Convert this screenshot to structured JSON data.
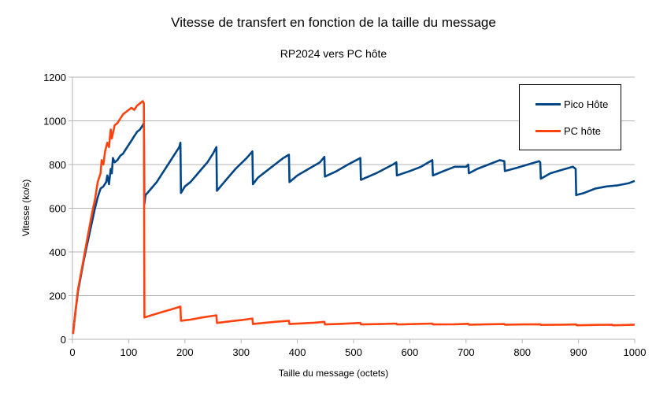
{
  "chart_data": {
    "type": "line",
    "title": "Vitesse de transfert en fonction de la taille du message",
    "subtitle": "RP2024 vers PC hôte",
    "xlabel": "Taille du message (octets)",
    "ylabel": "Vitesse (ko/s)",
    "xlim": [
      0,
      1000
    ],
    "ylim": [
      0,
      1200
    ],
    "xticks": [
      0,
      100,
      200,
      300,
      400,
      500,
      600,
      700,
      800,
      900,
      1000
    ],
    "yticks": [
      0,
      200,
      400,
      600,
      800,
      1000,
      1200
    ],
    "grid": "horizontal",
    "legend_position": "top-right",
    "series": [
      {
        "name": "Pico Hôte",
        "color": "#004586",
        "points": [
          [
            1,
            25
          ],
          [
            5,
            120
          ],
          [
            10,
            220
          ],
          [
            15,
            290
          ],
          [
            20,
            360
          ],
          [
            25,
            420
          ],
          [
            30,
            480
          ],
          [
            35,
            540
          ],
          [
            40,
            600
          ],
          [
            45,
            650
          ],
          [
            50,
            690
          ],
          [
            55,
            700
          ],
          [
            60,
            720
          ],
          [
            62,
            750
          ],
          [
            65,
            710
          ],
          [
            68,
            780
          ],
          [
            70,
            760
          ],
          [
            72,
            830
          ],
          [
            75,
            810
          ],
          [
            80,
            820
          ],
          [
            85,
            840
          ],
          [
            90,
            850
          ],
          [
            95,
            870
          ],
          [
            100,
            890
          ],
          [
            105,
            910
          ],
          [
            110,
            930
          ],
          [
            115,
            950
          ],
          [
            120,
            960
          ],
          [
            125,
            980
          ],
          [
            127,
            990
          ],
          [
            128,
            620
          ],
          [
            130,
            660
          ],
          [
            140,
            690
          ],
          [
            150,
            720
          ],
          [
            160,
            760
          ],
          [
            170,
            800
          ],
          [
            180,
            840
          ],
          [
            190,
            880
          ],
          [
            192,
            900
          ],
          [
            193,
            670
          ],
          [
            200,
            700
          ],
          [
            210,
            720
          ],
          [
            220,
            750
          ],
          [
            230,
            780
          ],
          [
            240,
            810
          ],
          [
            250,
            850
          ],
          [
            256,
            880
          ],
          [
            257,
            680
          ],
          [
            270,
            720
          ],
          [
            290,
            780
          ],
          [
            310,
            830
          ],
          [
            320,
            860
          ],
          [
            321,
            710
          ],
          [
            330,
            740
          ],
          [
            345,
            770
          ],
          [
            360,
            800
          ],
          [
            375,
            830
          ],
          [
            385,
            845
          ],
          [
            386,
            720
          ],
          [
            400,
            750
          ],
          [
            420,
            780
          ],
          [
            440,
            810
          ],
          [
            448,
            835
          ],
          [
            449,
            745
          ],
          [
            470,
            770
          ],
          [
            490,
            800
          ],
          [
            512,
            830
          ],
          [
            513,
            730
          ],
          [
            540,
            760
          ],
          [
            570,
            800
          ],
          [
            576,
            810
          ],
          [
            577,
            750
          ],
          [
            600,
            770
          ],
          [
            620,
            790
          ],
          [
            640,
            820
          ],
          [
            641,
            750
          ],
          [
            660,
            770
          ],
          [
            680,
            790
          ],
          [
            700,
            790
          ],
          [
            704,
            800
          ],
          [
            705,
            760
          ],
          [
            720,
            780
          ],
          [
            740,
            800
          ],
          [
            760,
            820
          ],
          [
            768,
            815
          ],
          [
            769,
            770
          ],
          [
            790,
            785
          ],
          [
            810,
            800
          ],
          [
            830,
            815
          ],
          [
            832,
            810
          ],
          [
            833,
            735
          ],
          [
            850,
            760
          ],
          [
            870,
            775
          ],
          [
            890,
            790
          ],
          [
            895,
            780
          ],
          [
            896,
            660
          ],
          [
            910,
            670
          ],
          [
            930,
            690
          ],
          [
            950,
            700
          ],
          [
            970,
            705
          ],
          [
            990,
            715
          ],
          [
            1000,
            725
          ]
        ]
      },
      {
        "name": "PC hôte",
        "color": "#ff420e",
        "points": [
          [
            1,
            25
          ],
          [
            5,
            120
          ],
          [
            10,
            230
          ],
          [
            15,
            300
          ],
          [
            20,
            370
          ],
          [
            25,
            440
          ],
          [
            30,
            510
          ],
          [
            35,
            580
          ],
          [
            40,
            640
          ],
          [
            45,
            720
          ],
          [
            50,
            760
          ],
          [
            52,
            820
          ],
          [
            55,
            800
          ],
          [
            58,
            860
          ],
          [
            62,
            900
          ],
          [
            65,
            880
          ],
          [
            68,
            960
          ],
          [
            70,
            920
          ],
          [
            75,
            980
          ],
          [
            80,
            990
          ],
          [
            85,
            1010
          ],
          [
            90,
            1030
          ],
          [
            95,
            1040
          ],
          [
            100,
            1050
          ],
          [
            105,
            1060
          ],
          [
            110,
            1050
          ],
          [
            115,
            1070
          ],
          [
            120,
            1080
          ],
          [
            125,
            1090
          ],
          [
            127,
            1080
          ],
          [
            128,
            100
          ],
          [
            140,
            110
          ],
          [
            160,
            125
          ],
          [
            180,
            140
          ],
          [
            192,
            150
          ],
          [
            193,
            85
          ],
          [
            210,
            90
          ],
          [
            230,
            100
          ],
          [
            256,
            110
          ],
          [
            257,
            75
          ],
          [
            280,
            82
          ],
          [
            300,
            88
          ],
          [
            320,
            95
          ],
          [
            321,
            70
          ],
          [
            340,
            75
          ],
          [
            360,
            80
          ],
          [
            385,
            85
          ],
          [
            386,
            70
          ],
          [
            410,
            73
          ],
          [
            430,
            76
          ],
          [
            448,
            80
          ],
          [
            449,
            68
          ],
          [
            480,
            71
          ],
          [
            512,
            75
          ],
          [
            513,
            68
          ],
          [
            550,
            70
          ],
          [
            576,
            72
          ],
          [
            577,
            68
          ],
          [
            610,
            70
          ],
          [
            640,
            72
          ],
          [
            641,
            68
          ],
          [
            680,
            69
          ],
          [
            704,
            71
          ],
          [
            705,
            67
          ],
          [
            740,
            69
          ],
          [
            768,
            70
          ],
          [
            769,
            67
          ],
          [
            800,
            68
          ],
          [
            832,
            69
          ],
          [
            833,
            66
          ],
          [
            870,
            67
          ],
          [
            896,
            68
          ],
          [
            897,
            64
          ],
          [
            930,
            66
          ],
          [
            960,
            67
          ],
          [
            961,
            64
          ],
          [
            990,
            66
          ],
          [
            1000,
            67
          ]
        ]
      }
    ]
  }
}
